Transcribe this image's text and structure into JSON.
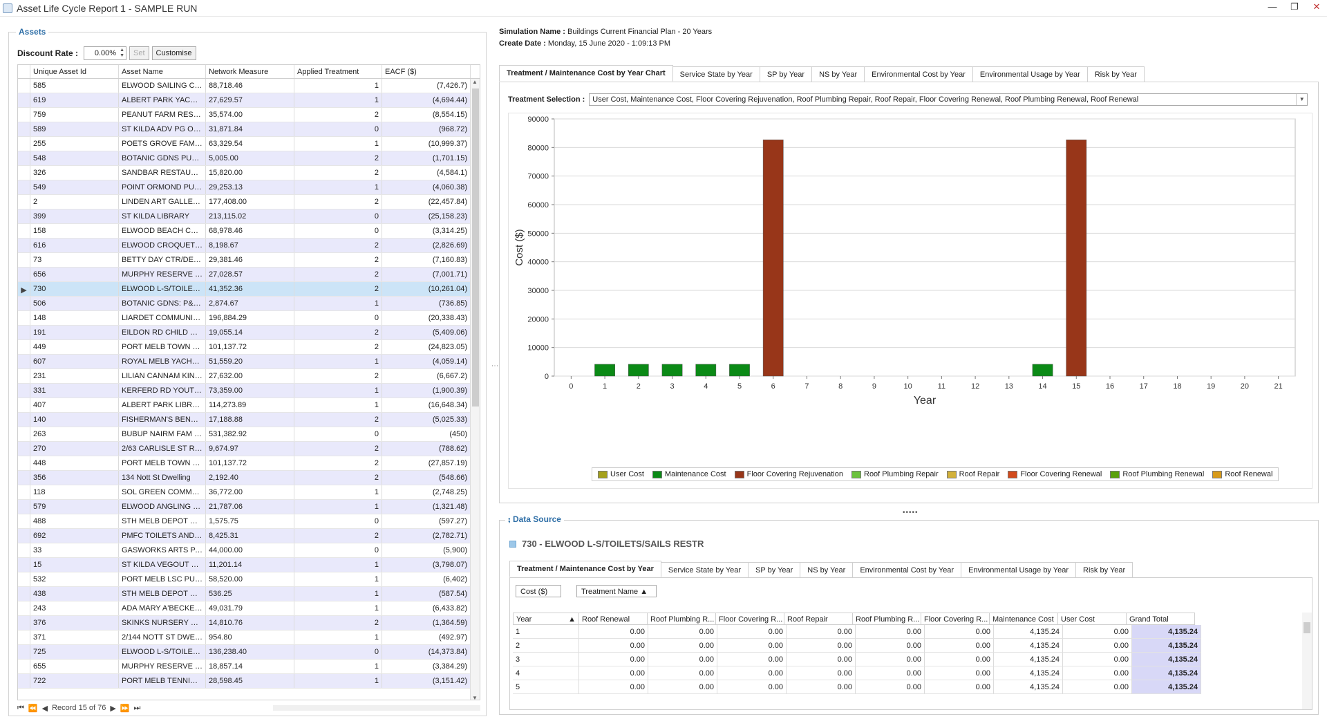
{
  "window": {
    "title": "Asset Life Cycle Report 1 - SAMPLE RUN"
  },
  "assets": {
    "group_title": "Assets",
    "discount_label": "Discount Rate :",
    "discount_value": "0.00%",
    "set_label": "Set",
    "customise_label": "Customise",
    "columns": [
      "Unique Asset Id",
      "Asset Name",
      "Network Measure",
      "Applied Treatment",
      "EACF ($)"
    ],
    "selected_index": 15,
    "rows": [
      [
        "585",
        "ELWOOD SAILING CLUB",
        "88,718.46",
        "1",
        "(7,426.7)"
      ],
      [
        "619",
        "ALBERT PARK YACHTI...",
        "27,629.57",
        "1",
        "(4,694.44)"
      ],
      [
        "759",
        "PEANUT FARM RESER...",
        "35,574.00",
        "2",
        "(8,554.15)"
      ],
      [
        "589",
        "ST KILDA ADV PG OFF...",
        "31,871.84",
        "0",
        "(968.72)"
      ],
      [
        "255",
        "POETS GROVE FAMIL...",
        "63,329.54",
        "1",
        "(10,999.37)"
      ],
      [
        "548",
        "BOTANIC GDNS PUBLI...",
        "5,005.00",
        "2",
        "(1,701.15)"
      ],
      [
        "326",
        "SANDBAR RESTAURA...",
        "15,820.00",
        "2",
        "(4,584.1)"
      ],
      [
        "549",
        "POINT ORMOND PUBL...",
        "29,253.13",
        "1",
        "(4,060.38)"
      ],
      [
        "2",
        "LINDEN ART GALLERY",
        "177,408.00",
        "2",
        "(22,457.84)"
      ],
      [
        "399",
        "ST KILDA LIBRARY",
        "213,115.02",
        "0",
        "(25,158.23)"
      ],
      [
        "158",
        "ELWOOD BEACH COM...",
        "68,978.46",
        "0",
        "(3,314.25)"
      ],
      [
        "616",
        "ELWOOD CROQUET C...",
        "8,198.67",
        "2",
        "(2,826.69)"
      ],
      [
        "73",
        "BETTY DAY CTR/DELI...",
        "29,381.46",
        "2",
        "(7,160.83)"
      ],
      [
        "656",
        "MURPHY RESERVE SO...",
        "27,028.57",
        "2",
        "(7,001.71)"
      ],
      [
        "730",
        "ELWOOD L-S/TOILET...",
        "41,352.36",
        "2",
        "(10,261.04)"
      ],
      [
        "506",
        "BOTANIC GDNS: P&G ...",
        "2,874.67",
        "1",
        "(736.85)"
      ],
      [
        "148",
        "LIARDET COMMUNITY...",
        "196,884.29",
        "0",
        "(20,338.43)"
      ],
      [
        "191",
        "EILDON RD CHILD CA...",
        "19,055.14",
        "2",
        "(5,409.06)"
      ],
      [
        "449",
        "PORT MELB TOWN HALL",
        "101,137.72",
        "2",
        "(24,823.05)"
      ],
      [
        "607",
        "ROYAL MELB YACHT S...",
        "51,559.20",
        "1",
        "(4,059.14)"
      ],
      [
        "231",
        "LILIAN CANNAM KIND...",
        "27,632.00",
        "2",
        "(6,667.2)"
      ],
      [
        "331",
        "KERFERD RD YOUTH ...",
        "73,359.00",
        "1",
        "(1,900.39)"
      ],
      [
        "407",
        "ALBERT PARK LIBRARY",
        "114,273.89",
        "1",
        "(16,648.34)"
      ],
      [
        "140",
        "FISHERMAN'S BEND C...",
        "17,188.88",
        "2",
        "(5,025.33)"
      ],
      [
        "263",
        "BUBUP NAIRM FAM & ...",
        "531,382.92",
        "0",
        "(450)"
      ],
      [
        "270",
        "2/63 CARLISLE ST RE...",
        "9,674.97",
        "2",
        "(788.62)"
      ],
      [
        "448",
        "PORT MELB TOWN HALL",
        "101,137.72",
        "2",
        "(27,857.19)"
      ],
      [
        "356",
        "134 Nott St Dwelling",
        "2,192.40",
        "2",
        "(548.66)"
      ],
      [
        "118",
        "SOL GREEN COMMUN...",
        "36,772.00",
        "1",
        "(2,748.25)"
      ],
      [
        "579",
        "ELWOOD ANGLING CL...",
        "21,787.06",
        "1",
        "(1,321.48)"
      ],
      [
        "488",
        "STH MELB DEPOT PRT...",
        "1,575.75",
        "0",
        "(597.27)"
      ],
      [
        "692",
        "PMFC TOILETS AND S...",
        "8,425.31",
        "2",
        "(2,782.71)"
      ],
      [
        "33",
        "GASWORKS ARTS PA...",
        "44,000.00",
        "0",
        "(5,900)"
      ],
      [
        "15",
        "ST KILDA VEGOUT & ...",
        "11,201.14",
        "1",
        "(3,798.07)"
      ],
      [
        "532",
        "PORT MELB LSC PUBL...",
        "58,520.00",
        "1",
        "(6,402)"
      ],
      [
        "438",
        "STH MELB DEPOT PRT...",
        "536.25",
        "1",
        "(587.54)"
      ],
      [
        "243",
        "ADA MARY A'BECKET...",
        "49,031.79",
        "1",
        "(6,433.82)"
      ],
      [
        "376",
        "SKINKS NURSERY OF...",
        "14,810.76",
        "2",
        "(1,364.59)"
      ],
      [
        "371",
        "2/144 NOTT ST DWEL...",
        "954.80",
        "1",
        "(492.97)"
      ],
      [
        "725",
        "ELWOOD L-S/TOILET...",
        "136,238.40",
        "0",
        "(14,373.84)"
      ],
      [
        "655",
        "MURPHY RESERVE SO...",
        "18,857.14",
        "1",
        "(3,384.29)"
      ],
      [
        "722",
        "PORT MELB TENNIS C...",
        "28,598.45",
        "1",
        "(3,151.42)"
      ]
    ],
    "record_text": "Record 15 of 76"
  },
  "info": {
    "sim_label": "Simulation Name :",
    "sim_value": "Buildings Current Financial Plan - 20 Years",
    "date_label": "Create Date :",
    "date_value": "Monday, 15 June 2020 - 1:09:13 PM"
  },
  "chart_tabs": [
    "Treatment / Maintenance Cost by Year Chart",
    "Service State by Year",
    "SP by Year",
    "NS by Year",
    "Environmental Cost by Year",
    "Environmental Usage by Year",
    "Risk by Year"
  ],
  "treatment_selection": {
    "label": "Treatment Selection :",
    "value": "User Cost, Maintenance Cost, Floor Covering Rejuvenation, Roof Plumbing Repair, Roof Repair, Floor Covering Renewal, Roof Plumbing Renewal, Roof Renewal"
  },
  "chart_data": {
    "type": "bar",
    "xlabel": "Year",
    "ylabel": "Cost ($)",
    "x": [
      0,
      1,
      2,
      3,
      4,
      5,
      6,
      7,
      8,
      9,
      10,
      11,
      12,
      13,
      14,
      15,
      16,
      17,
      18,
      19,
      20,
      21
    ],
    "ylim": [
      0,
      90000
    ],
    "yticks": [
      0,
      10000,
      20000,
      30000,
      40000,
      50000,
      60000,
      70000,
      80000,
      90000
    ],
    "grid": true,
    "legend_position": "bottom",
    "series": [
      {
        "name": "User Cost",
        "color": "#a5a11c",
        "values": [
          0,
          0,
          0,
          0,
          0,
          0,
          0,
          0,
          0,
          0,
          0,
          0,
          0,
          0,
          0,
          0,
          0,
          0,
          0,
          0,
          0,
          0
        ]
      },
      {
        "name": "Maintenance Cost",
        "color": "#0b8a16",
        "values": [
          0,
          4135.24,
          4135.24,
          4135.24,
          4135.24,
          4135.24,
          0,
          0,
          0,
          0,
          0,
          0,
          0,
          0,
          4135.24,
          0,
          0,
          0,
          0,
          0,
          0,
          0
        ]
      },
      {
        "name": "Floor Covering Rejuvenation",
        "color": "#983619",
        "values": [
          0,
          0,
          0,
          0,
          0,
          0,
          82701.72,
          0,
          0,
          0,
          0,
          0,
          0,
          0,
          0,
          82701.72,
          0,
          0,
          0,
          0,
          0,
          0
        ]
      },
      {
        "name": "Roof Plumbing Repair",
        "color": "#6cc23d",
        "values": [
          0,
          0,
          0,
          0,
          0,
          0,
          0,
          0,
          0,
          0,
          0,
          0,
          0,
          0,
          0,
          0,
          0,
          0,
          0,
          0,
          0,
          0
        ]
      },
      {
        "name": "Roof Repair",
        "color": "#d2b13a",
        "values": [
          0,
          0,
          0,
          0,
          0,
          0,
          0,
          0,
          0,
          0,
          0,
          0,
          0,
          0,
          0,
          0,
          0,
          0,
          0,
          0,
          0,
          0
        ]
      },
      {
        "name": "Floor Covering Renewal",
        "color": "#d24a1c",
        "values": [
          0,
          0,
          0,
          0,
          0,
          0,
          0,
          0,
          0,
          0,
          0,
          0,
          0,
          0,
          0,
          0,
          0,
          0,
          0,
          0,
          0,
          0
        ]
      },
      {
        "name": "Roof Plumbing Renewal",
        "color": "#5aa10c",
        "values": [
          0,
          0,
          0,
          0,
          0,
          0,
          0,
          0,
          0,
          0,
          0,
          0,
          0,
          0,
          0,
          0,
          0,
          0,
          0,
          0,
          0,
          0
        ]
      },
      {
        "name": "Roof Renewal",
        "color": "#d79a1a",
        "values": [
          0,
          0,
          0,
          0,
          0,
          0,
          0,
          0,
          0,
          0,
          0,
          0,
          0,
          0,
          0,
          0,
          0,
          0,
          0,
          0,
          0,
          0
        ]
      }
    ]
  },
  "data_source": {
    "title": "Data Source",
    "asset_label": "730 - ELWOOD L-S/TOILETS/SAILS RESTR",
    "tabs": [
      "Treatment / Maintenance Cost by Year",
      "Service State by Year",
      "SP by Year",
      "NS by Year",
      "Environmental Cost by Year",
      "Environmental Usage by Year",
      "Risk by Year"
    ],
    "data_field": "Cost ($)",
    "column_field": "Treatment Name",
    "row_field": "Year",
    "columns": [
      "Roof Renewal",
      "Roof Plumbing R...",
      "Floor Covering R...",
      "Roof Repair",
      "Roof Plumbing R...",
      "Floor Covering R...",
      "Maintenance Cost",
      "User Cost",
      "Grand Total"
    ],
    "rows": [
      [
        "1",
        "0.00",
        "0.00",
        "0.00",
        "0.00",
        "0.00",
        "0.00",
        "4,135.24",
        "0.00",
        "4,135.24"
      ],
      [
        "2",
        "0.00",
        "0.00",
        "0.00",
        "0.00",
        "0.00",
        "0.00",
        "4,135.24",
        "0.00",
        "4,135.24"
      ],
      [
        "3",
        "0.00",
        "0.00",
        "0.00",
        "0.00",
        "0.00",
        "0.00",
        "4,135.24",
        "0.00",
        "4,135.24"
      ],
      [
        "4",
        "0.00",
        "0.00",
        "0.00",
        "0.00",
        "0.00",
        "0.00",
        "4,135.24",
        "0.00",
        "4,135.24"
      ],
      [
        "5",
        "0.00",
        "0.00",
        "0.00",
        "0.00",
        "0.00",
        "0.00",
        "4,135.24",
        "0.00",
        "4,135.24"
      ]
    ]
  }
}
